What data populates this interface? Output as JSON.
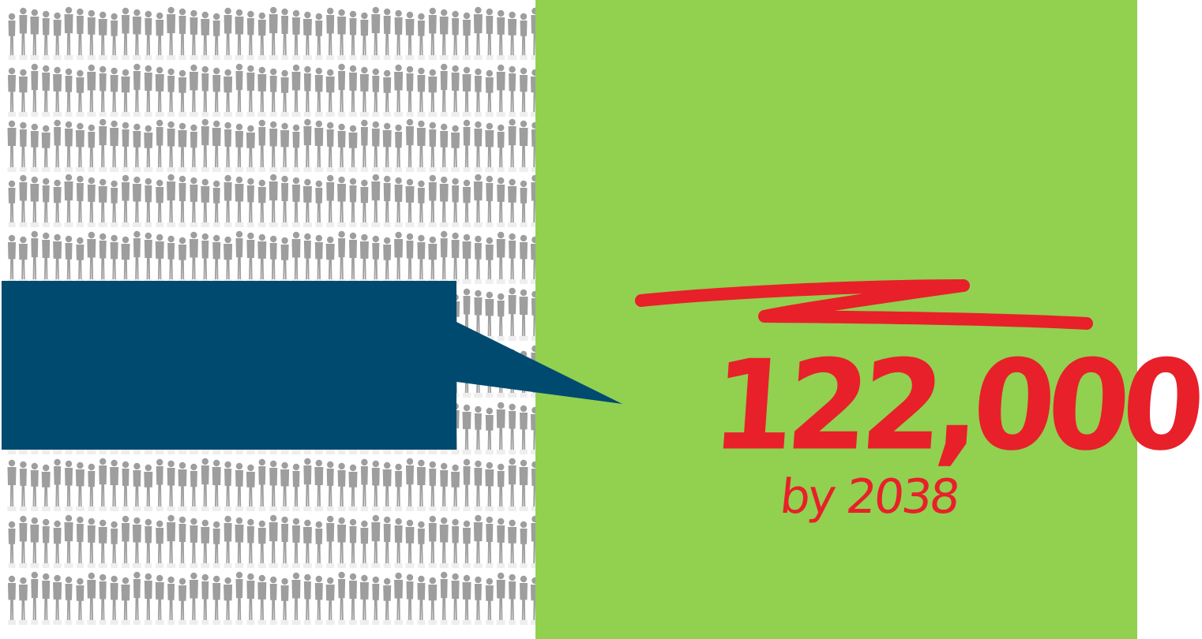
{
  "slide": {
    "statistic": "122,000",
    "subtitle": "by 2038"
  },
  "colors": {
    "green_panel": "#92d050",
    "callout_box": "#004a70",
    "handwriting_red": "#e8202a",
    "silhouette_gray": "#9e9e9e"
  },
  "icons": {
    "crowd": "person-silhouette-icon",
    "scribble": "strike-scribble"
  }
}
